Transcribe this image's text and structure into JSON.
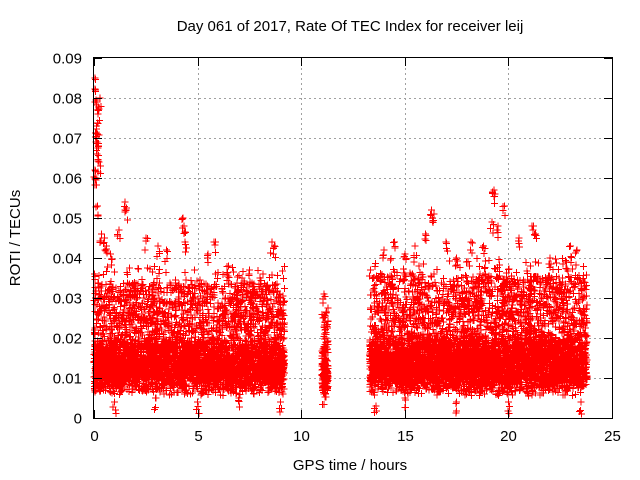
{
  "chart_data": {
    "type": "scatter",
    "title": "Day 061 of 2017, Rate Of TEC Index for receiver leij",
    "xlabel": "GPS time / hours",
    "ylabel": "ROTI / TECUs",
    "xlim": [
      0,
      25
    ],
    "ylim": [
      0,
      0.09
    ],
    "x_ticks": [
      0,
      5,
      10,
      15,
      20,
      25
    ],
    "x_tick_labels": [
      "0",
      "5",
      "10",
      "15",
      "20",
      "25"
    ],
    "y_ticks": [
      0,
      0.01,
      0.02,
      0.03,
      0.04,
      0.05,
      0.06,
      0.07,
      0.08,
      0.09
    ],
    "y_tick_labels": [
      "0",
      "0.01",
      "0.02",
      "0.03",
      "0.04",
      "0.05",
      "0.06",
      "0.07",
      "0.08",
      "0.09"
    ],
    "grid": true,
    "marker": "+",
    "marker_color": "#ff0000",
    "series": [
      {
        "name": "ROTI",
        "points": [
          [
            0.05,
            0.085
          ],
          [
            0.08,
            0.082
          ],
          [
            0.15,
            0.079
          ],
          [
            0.2,
            0.076
          ],
          [
            0.12,
            0.073
          ],
          [
            0.18,
            0.071
          ],
          [
            0.1,
            0.069
          ],
          [
            0.22,
            0.068
          ],
          [
            0.14,
            0.066
          ],
          [
            0.06,
            0.062
          ],
          [
            0.25,
            0.064
          ],
          [
            0.3,
            0.08
          ],
          [
            0.1,
            0.06
          ],
          [
            0.16,
            0.053
          ],
          [
            0.35,
            0.046
          ],
          [
            0.5,
            0.045
          ],
          [
            0.6,
            0.043
          ],
          [
            0.8,
            0.041
          ],
          [
            1.2,
            0.047
          ],
          [
            1.5,
            0.054
          ],
          [
            1.55,
            0.052
          ],
          [
            2.5,
            0.045
          ],
          [
            3.1,
            0.043
          ],
          [
            3.5,
            0.042
          ],
          [
            4.3,
            0.05
          ],
          [
            4.35,
            0.048
          ],
          [
            4.4,
            0.044
          ],
          [
            5.5,
            0.041
          ],
          [
            5.8,
            0.044
          ],
          [
            6.5,
            0.038
          ],
          [
            7.5,
            0.037
          ],
          [
            8.0,
            0.035
          ],
          [
            8.6,
            0.044
          ],
          [
            8.7,
            0.043
          ],
          [
            9.0,
            0.03
          ],
          [
            11.1,
            0.031
          ],
          [
            11.15,
            0.024
          ],
          [
            11.2,
            0.02
          ],
          [
            11.1,
            0.015
          ],
          [
            11.2,
            0.012
          ],
          [
            11.15,
            0.008
          ],
          [
            11.1,
            0.006
          ],
          [
            13.5,
            0.035
          ],
          [
            14.0,
            0.042
          ],
          [
            14.5,
            0.044
          ],
          [
            15.0,
            0.041
          ],
          [
            15.5,
            0.043
          ],
          [
            16.0,
            0.046
          ],
          [
            16.3,
            0.052
          ],
          [
            16.4,
            0.051
          ],
          [
            17.0,
            0.044
          ],
          [
            17.5,
            0.04
          ],
          [
            18.2,
            0.044
          ],
          [
            18.8,
            0.043
          ],
          [
            19.3,
            0.057
          ],
          [
            19.35,
            0.056
          ],
          [
            19.2,
            0.049
          ],
          [
            19.5,
            0.048
          ],
          [
            19.8,
            0.053
          ],
          [
            20.5,
            0.045
          ],
          [
            21.2,
            0.048
          ],
          [
            21.3,
            0.046
          ],
          [
            22.0,
            0.04
          ],
          [
            22.8,
            0.039
          ],
          [
            23.0,
            0.043
          ],
          [
            23.3,
            0.042
          ],
          [
            23.7,
            0.033
          ],
          [
            1.0,
            0.004
          ],
          [
            3.0,
            0.005
          ],
          [
            5.0,
            0.004
          ],
          [
            7.0,
            0.005
          ],
          [
            9.0,
            0.004
          ],
          [
            13.6,
            0.003
          ],
          [
            15.0,
            0.005
          ],
          [
            17.5,
            0.004
          ],
          [
            20.0,
            0.004
          ],
          [
            23.5,
            0.004
          ]
        ],
        "dense_bands": [
          {
            "x_start": 0.0,
            "x_end": 9.2,
            "y_low": 0.004,
            "y_typical": 0.017,
            "y_high": 0.038
          },
          {
            "x_start": 11.0,
            "x_end": 11.3,
            "y_low": 0.006,
            "y_typical": 0.013,
            "y_high": 0.031
          },
          {
            "x_start": 13.3,
            "x_end": 23.8,
            "y_low": 0.003,
            "y_typical": 0.018,
            "y_high": 0.04
          }
        ]
      }
    ]
  }
}
